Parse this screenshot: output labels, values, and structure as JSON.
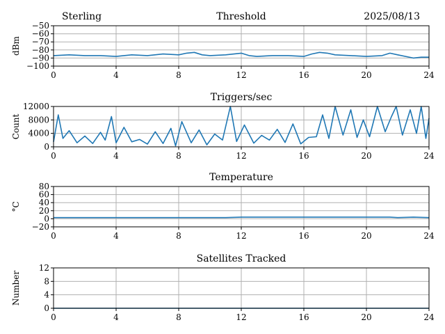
{
  "header": {
    "left": "Sterling",
    "right": "2025/08/13"
  },
  "colors": {
    "series": "#1f77b4",
    "grid": "#b0b0b0",
    "axes": "#000000"
  },
  "chart_data": [
    {
      "type": "line",
      "title": "Threshold",
      "ylabel": "dBm",
      "xlabel": "",
      "xlim": [
        0,
        24
      ],
      "ylim": [
        -100,
        -50
      ],
      "xticks": [
        "0",
        "4",
        "8",
        "12",
        "16",
        "20",
        "24"
      ],
      "yticks": [
        "−50",
        "−60",
        "−70",
        "−80",
        "−90",
        "−100"
      ],
      "grid": true,
      "series": [
        {
          "x": [
            0,
            1,
            2,
            3,
            4,
            5,
            6,
            7,
            8,
            8.5,
            9,
            9.5,
            10,
            11,
            12,
            12.5,
            13,
            14,
            15,
            16,
            16.5,
            17,
            17.5,
            18,
            19,
            20,
            21,
            21.5,
            22,
            23,
            23.5,
            24
          ],
          "y": [
            -87,
            -86,
            -87,
            -87,
            -88,
            -86,
            -87,
            -85,
            -86,
            -84,
            -83,
            -86,
            -87,
            -86,
            -84,
            -87,
            -88,
            -87,
            -87,
            -88,
            -85,
            -83,
            -84,
            -86,
            -87,
            -88,
            -87,
            -84,
            -86,
            -90,
            -89,
            -89
          ]
        }
      ]
    },
    {
      "type": "line",
      "title": "Triggers/sec",
      "ylabel": "Count",
      "xlabel": "",
      "xlim": [
        0,
        24
      ],
      "ylim": [
        0,
        12000
      ],
      "xticks": [
        "0",
        "4",
        "8",
        "12",
        "16",
        "20",
        "24"
      ],
      "yticks": [
        "0",
        "4000",
        "8000",
        "12000"
      ],
      "grid": true,
      "series": [
        {
          "x": [
            0,
            0.3,
            0.6,
            1,
            1.5,
            2,
            2.5,
            3,
            3.3,
            3.7,
            4,
            4.5,
            5,
            5.5,
            6,
            6.5,
            7,
            7.5,
            7.8,
            8.2,
            8.8,
            9.3,
            9.8,
            10.3,
            10.8,
            11.3,
            11.7,
            12.2,
            12.8,
            13.3,
            13.8,
            14.3,
            14.8,
            15.3,
            15.8,
            16.3,
            16.8,
            17.2,
            17.6,
            18,
            18.5,
            19,
            19.4,
            19.8,
            20.2,
            20.7,
            21.2,
            21.6,
            21.9,
            22.3,
            22.8,
            23.2,
            23.5,
            23.8,
            24
          ],
          "y": [
            1500,
            9500,
            2500,
            4800,
            1200,
            3200,
            1000,
            4300,
            2000,
            9000,
            1200,
            5800,
            1500,
            2200,
            800,
            4500,
            1000,
            5500,
            300,
            7500,
            1200,
            5000,
            600,
            3800,
            2000,
            12000,
            1600,
            6500,
            1100,
            3400,
            2000,
            5200,
            1300,
            6800,
            900,
            2800,
            3000,
            9500,
            2500,
            12000,
            3500,
            11000,
            2800,
            8000,
            3000,
            12000,
            4500,
            9000,
            12000,
            3500,
            11000,
            4000,
            12000,
            2500,
            8500
          ]
        }
      ]
    },
    {
      "type": "line",
      "title": "Temperature",
      "ylabel": "°C",
      "xlabel": "",
      "xlim": [
        0,
        24
      ],
      "ylim": [
        -20,
        80
      ],
      "xticks": [
        "0",
        "4",
        "8",
        "12",
        "16",
        "20",
        "24"
      ],
      "yticks": [
        "−20",
        "0",
        "20",
        "40",
        "60",
        "80"
      ],
      "grid": true,
      "series": [
        {
          "x": [
            0,
            4,
            8,
            11,
            12,
            14,
            16,
            18,
            20,
            21.5,
            22,
            23,
            24
          ],
          "y": [
            3,
            3,
            3,
            3,
            4,
            4,
            4,
            4,
            4,
            4,
            3,
            4,
            3
          ]
        }
      ]
    },
    {
      "type": "line",
      "title": "Satellites Tracked",
      "ylabel": "Number",
      "xlabel": "",
      "xlim": [
        0,
        24
      ],
      "ylim": [
        0,
        12
      ],
      "xticks": [
        "0",
        "4",
        "8",
        "12",
        "16",
        "20",
        "24"
      ],
      "yticks": [
        "0",
        "4",
        "8",
        "12"
      ],
      "grid": true,
      "series": [
        {
          "x": [
            0,
            24
          ],
          "y": [
            0,
            0
          ]
        }
      ]
    }
  ]
}
